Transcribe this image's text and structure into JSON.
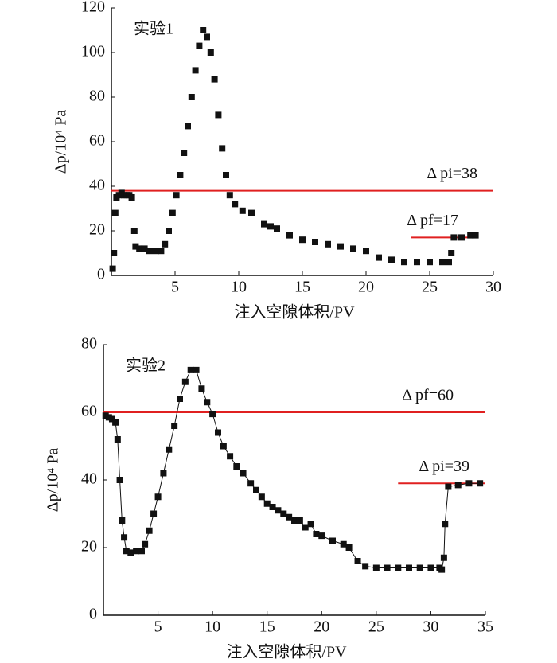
{
  "chart_data": [
    {
      "type": "scatter",
      "annotation": "实验1",
      "x_label": "注入空隙体积/PV",
      "y_label": "Δp/10⁴ Pa",
      "color": "#111111",
      "line": false,
      "x": [
        0.1,
        0.2,
        0.3,
        0.4,
        0.6,
        0.8,
        1.0,
        1.2,
        1.4,
        1.6,
        1.8,
        1.9,
        2.2,
        2.6,
        3.0,
        3.5,
        3.9,
        4.2,
        4.5,
        4.8,
        5.1,
        5.4,
        5.7,
        6.0,
        6.3,
        6.6,
        6.9,
        7.2,
        7.5,
        7.8,
        8.1,
        8.4,
        8.7,
        9.0,
        9.3,
        9.7,
        10.3,
        11,
        12,
        12.5,
        13,
        14,
        15,
        16,
        17,
        18,
        19,
        20,
        21,
        22,
        23,
        24,
        25,
        26,
        26.5,
        26.7,
        26.9,
        27.5,
        28.2,
        28.6
      ],
      "values": [
        3,
        10,
        28,
        35,
        36,
        37,
        36,
        36,
        36,
        35,
        20,
        13,
        12,
        12,
        11,
        11,
        11,
        14,
        20,
        28,
        36,
        45,
        55,
        67,
        80,
        92,
        103,
        110,
        107,
        100,
        88,
        72,
        57,
        45,
        36,
        32,
        29,
        28,
        23,
        22,
        21,
        18,
        16,
        15,
        14,
        13,
        12,
        11,
        8,
        7,
        6,
        6,
        6,
        6,
        6,
        10,
        17,
        17,
        18,
        18
      ],
      "ref_lines": [
        {
          "label": "Δ pi=38",
          "value": 38,
          "xrange": [
            0,
            30
          ],
          "color": "#e02020"
        },
        {
          "label": "Δ pf=17",
          "value": 17,
          "xrange": [
            23.5,
            28.5
          ],
          "color": "#e02020"
        }
      ],
      "xlim": [
        0,
        30
      ],
      "ylim": [
        0,
        120
      ],
      "xticks": [
        5,
        10,
        15,
        20,
        25,
        30
      ],
      "yticks": [
        0,
        20,
        40,
        60,
        80,
        100,
        120
      ]
    },
    {
      "type": "scatter",
      "annotation": "实验2",
      "x_label": "注入空隙体积/PV",
      "y_label": "Δp/10⁴ Pa",
      "color": "#111111",
      "line": true,
      "x": [
        0.2,
        0.5,
        0.8,
        1.1,
        1.3,
        1.5,
        1.7,
        1.9,
        2.1,
        2.5,
        3.0,
        3.5,
        3.8,
        4.2,
        4.6,
        5.0,
        5.5,
        6.0,
        6.5,
        7.0,
        7.5,
        8.0,
        8.5,
        9.0,
        9.5,
        10.0,
        10.5,
        11.0,
        11.6,
        12.2,
        12.8,
        13.5,
        14.0,
        14.5,
        15.0,
        15.5,
        16.0,
        16.5,
        17.0,
        17.5,
        18.0,
        18.5,
        19,
        19.5,
        20,
        21,
        22,
        22.5,
        23.3,
        24,
        25,
        26,
        27,
        28,
        29,
        30,
        30.8,
        31,
        31.2,
        31.3,
        31.6,
        32.5,
        33.5,
        34.5
      ],
      "values": [
        59,
        58.5,
        58,
        57,
        52,
        40,
        28,
        23,
        19,
        18.5,
        19,
        19,
        21,
        25,
        30,
        35,
        42,
        49,
        56,
        64,
        69,
        72.5,
        72.5,
        67,
        63,
        59.5,
        54,
        50,
        47,
        44,
        42,
        39,
        37,
        35,
        33,
        32,
        31,
        30,
        29,
        28,
        28,
        26,
        27,
        24,
        23.5,
        22,
        21,
        20,
        16,
        14.5,
        14,
        14,
        14,
        14,
        14,
        14,
        14,
        13.5,
        17,
        27,
        38,
        38.5,
        39,
        39
      ],
      "ref_lines": [
        {
          "label": "Δ pf=60",
          "value": 60,
          "xrange": [
            0,
            35
          ],
          "color": "#e02020"
        },
        {
          "label": "Δ pi=39",
          "value": 39,
          "xrange": [
            27,
            35
          ],
          "color": "#e02020"
        }
      ],
      "xlim": [
        0,
        35
      ],
      "ylim": [
        0,
        80
      ],
      "xticks": [
        5,
        10,
        15,
        20,
        25,
        30,
        35
      ],
      "yticks": [
        0,
        20,
        40,
        60,
        80
      ]
    }
  ]
}
